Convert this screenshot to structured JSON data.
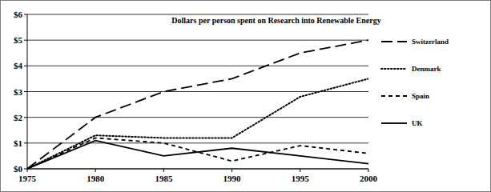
{
  "chart_data": {
    "type": "line",
    "title": "Dollars per person spent on Research into Renewable Energy",
    "x": [
      1975,
      1980,
      1985,
      1990,
      1995,
      2000
    ],
    "xlim": [
      1975,
      2000
    ],
    "xticks": [
      1975,
      1980,
      1985,
      1990,
      1995,
      2000
    ],
    "ylim": [
      0,
      6
    ],
    "yticks": [
      {
        "value": 0,
        "label": "$0"
      },
      {
        "value": 1,
        "label": "$1"
      },
      {
        "value": 2,
        "label": "$2"
      },
      {
        "value": 3,
        "label": "$3"
      },
      {
        "value": 4,
        "label": "$4"
      },
      {
        "value": 5,
        "label": "$5"
      },
      {
        "value": 6,
        "label": "$6"
      }
    ],
    "grid": true,
    "legend": "right",
    "series": [
      {
        "name": "Switzerland",
        "color": "#000000",
        "line_style": "long_dash",
        "values": [
          0,
          2,
          3,
          3.5,
          4.5,
          5
        ]
      },
      {
        "name": "Denmark",
        "color": "#000000",
        "line_style": "dotted",
        "values": [
          0,
          1.3,
          1.2,
          1.2,
          2.8,
          3.5
        ]
      },
      {
        "name": "Spain",
        "color": "#000000",
        "line_style": "dashed",
        "values": [
          0,
          1.2,
          1.0,
          0.3,
          0.9,
          0.6
        ]
      },
      {
        "name": "UK",
        "color": "#000000",
        "line_style": "solid",
        "values": [
          0,
          1.1,
          0.5,
          0.8,
          0.5,
          0.2
        ]
      }
    ]
  }
}
